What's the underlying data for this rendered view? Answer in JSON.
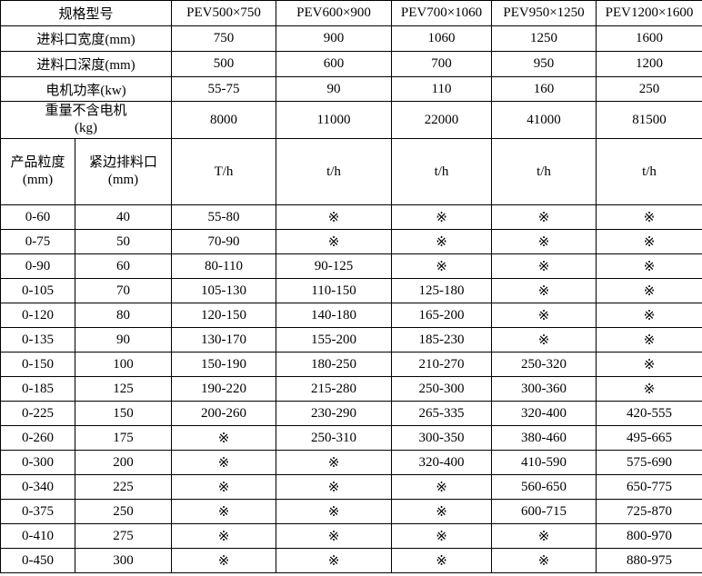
{
  "colors": {
    "background": "#ffffff",
    "text": "#000000",
    "border": "#000000"
  },
  "spec_table": {
    "model_row": {
      "label": "规格型号",
      "models": [
        "PEV500×750",
        "PEV600×900",
        "PEV700×1060",
        "PEV950×1250",
        "PEV1200×1600"
      ]
    },
    "rows": [
      {
        "label": "进料口宽度(mm)",
        "values": [
          "750",
          "900",
          "1060",
          "1250",
          "1600"
        ]
      },
      {
        "label": "进料口深度(mm)",
        "values": [
          "500",
          "600",
          "700",
          "950",
          "1200"
        ]
      },
      {
        "label": "电机功率(kw)",
        "values": [
          "55-75",
          "90",
          "110",
          "160",
          "250"
        ]
      },
      {
        "label": "重量不含电机",
        "label_line2": "(kg)",
        "values": [
          "8000",
          "11000",
          "22000",
          "41000",
          "81500"
        ]
      }
    ]
  },
  "capacity_table": {
    "headers": {
      "product_size": "产品粒度",
      "product_size_unit": "(mm)",
      "discharge": "紧边排料口",
      "discharge_unit": "(mm)",
      "unit_cols": [
        "T/h",
        "t/h",
        "t/h",
        "t/h",
        "t/h"
      ]
    },
    "na_symbol": "※",
    "rows": [
      {
        "size": "0-60",
        "discharge": "40",
        "values": [
          "55-80",
          "※",
          "※",
          "※",
          "※"
        ]
      },
      {
        "size": "0-75",
        "discharge": "50",
        "values": [
          "70-90",
          "※",
          "※",
          "※",
          "※"
        ]
      },
      {
        "size": "0-90",
        "discharge": "60",
        "values": [
          "80-110",
          "90-125",
          "※",
          "※",
          "※"
        ]
      },
      {
        "size": "0-105",
        "discharge": "70",
        "values": [
          "105-130",
          "110-150",
          "125-180",
          "※",
          "※"
        ]
      },
      {
        "size": "0-120",
        "discharge": "80",
        "values": [
          "120-150",
          "140-180",
          "165-200",
          "※",
          "※"
        ]
      },
      {
        "size": "0-135",
        "discharge": "90",
        "values": [
          "130-170",
          "155-200",
          "185-230",
          "※",
          "※"
        ]
      },
      {
        "size": "0-150",
        "discharge": "100",
        "values": [
          "150-190",
          "180-250",
          "210-270",
          "250-320",
          "※"
        ]
      },
      {
        "size": "0-185",
        "discharge": "125",
        "values": [
          "190-220",
          "215-280",
          "250-300",
          "300-360",
          "※"
        ]
      },
      {
        "size": "0-225",
        "discharge": "150",
        "values": [
          "200-260",
          "230-290",
          "265-335",
          "320-400",
          "420-555"
        ]
      },
      {
        "size": "0-260",
        "discharge": "175",
        "values": [
          "※",
          "250-310",
          "300-350",
          "380-460",
          "495-665"
        ]
      },
      {
        "size": "0-300",
        "discharge": "200",
        "values": [
          "※",
          "※",
          "320-400",
          "410-590",
          "575-690"
        ]
      },
      {
        "size": "0-340",
        "discharge": "225",
        "values": [
          "※",
          "※",
          "※",
          "560-650",
          "650-775"
        ]
      },
      {
        "size": "0-375",
        "discharge": "250",
        "values": [
          "※",
          "※",
          "※",
          "600-715",
          "725-870"
        ]
      },
      {
        "size": "0-410",
        "discharge": "275",
        "values": [
          "※",
          "※",
          "※",
          "※",
          "800-970"
        ]
      },
      {
        "size": "0-450",
        "discharge": "300",
        "values": [
          "※",
          "※",
          "※",
          "※",
          "880-975"
        ]
      }
    ]
  }
}
